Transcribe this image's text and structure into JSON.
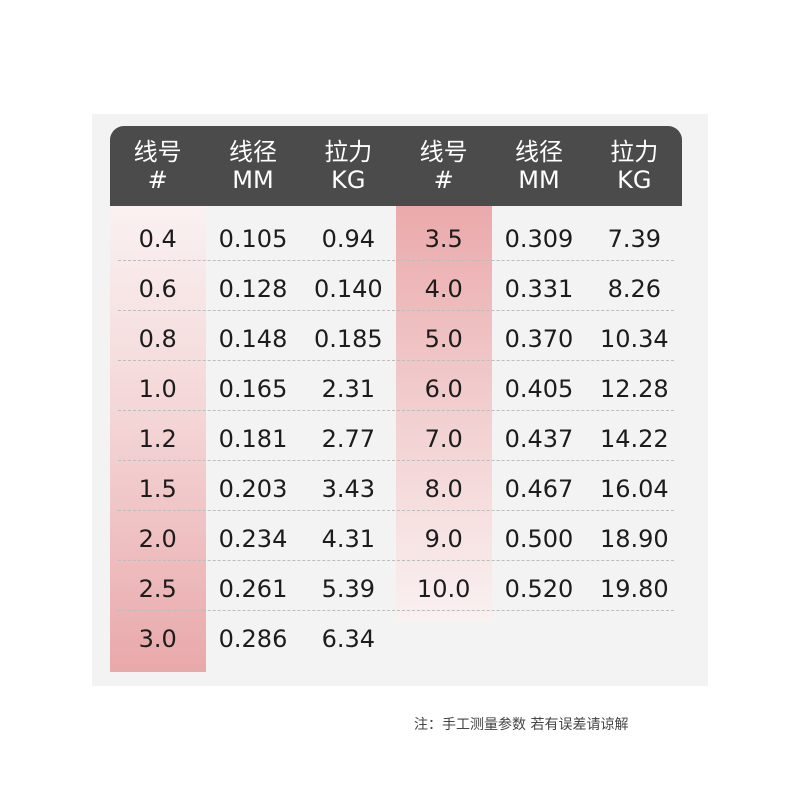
{
  "header": {
    "columns": [
      {
        "line1": "线号",
        "line2": "#"
      },
      {
        "line1": "线径",
        "line2": "MM"
      },
      {
        "line1": "拉力",
        "line2": "KG"
      },
      {
        "line1": "线号",
        "line2": "#"
      },
      {
        "line1": "线径",
        "line2": "MM"
      },
      {
        "line1": "拉力",
        "line2": "KG"
      }
    ]
  },
  "rows": [
    [
      "0.4",
      "0.105",
      "0.94",
      "3.5",
      "0.309",
      "7.39"
    ],
    [
      "0.6",
      "0.128",
      "0.140",
      "4.0",
      "0.331",
      "8.26"
    ],
    [
      "0.8",
      "0.148",
      "0.185",
      "5.0",
      "0.370",
      "10.34"
    ],
    [
      "1.0",
      "0.165",
      "2.31",
      "6.0",
      "0.405",
      "12.28"
    ],
    [
      "1.2",
      "0.181",
      "2.77",
      "7.0",
      "0.437",
      "14.22"
    ],
    [
      "1.5",
      "0.203",
      "3.43",
      "8.0",
      "0.467",
      "16.04"
    ],
    [
      "2.0",
      "0.234",
      "4.31",
      "9.0",
      "0.500",
      "18.90"
    ],
    [
      "2.5",
      "0.261",
      "5.39",
      "10.0",
      "0.520",
      "19.80"
    ],
    [
      "3.0",
      "0.286",
      "6.34",
      "",
      "",
      ""
    ]
  ],
  "note": "注：手工测量参数 若有误差请谅解",
  "colors": {
    "header_bg": "#4b4b4b",
    "highlight_column": "#e9a8aa",
    "panel_bg": "#f3f3f3"
  }
}
